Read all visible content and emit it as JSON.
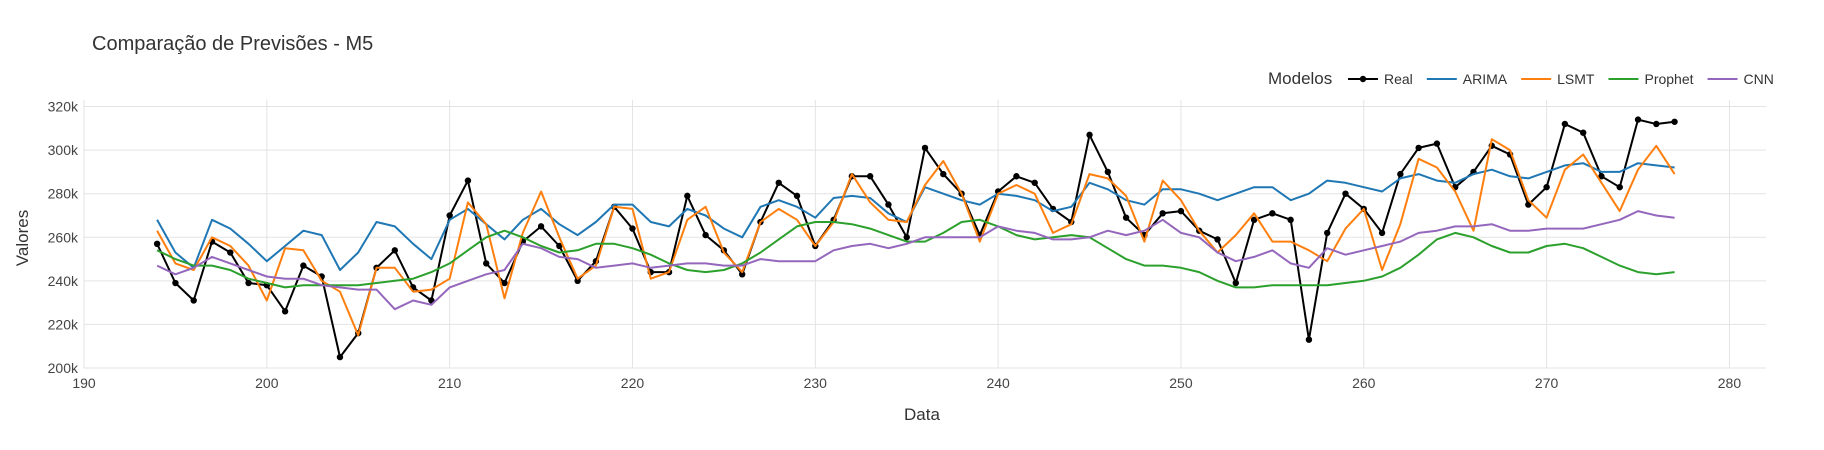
{
  "chart_data": {
    "type": "line",
    "title": "Comparação de Previsões - M5",
    "xlabel": "Data",
    "ylabel": "Valores",
    "xlim": [
      190,
      282
    ],
    "ylim": [
      200000,
      323000
    ],
    "xticks": [
      190,
      200,
      210,
      220,
      230,
      240,
      250,
      260,
      270,
      280
    ],
    "xtick_labels": [
      "190",
      "200",
      "210",
      "220",
      "230",
      "240",
      "250",
      "260",
      "270",
      "280"
    ],
    "yticks": [
      200000,
      220000,
      240000,
      260000,
      280000,
      300000,
      320000
    ],
    "ytick_labels": [
      "200k",
      "220k",
      "240k",
      "260k",
      "280k",
      "300k",
      "320k"
    ],
    "grid": true,
    "legend_title": "Modelos",
    "legend_position": "top-right",
    "x": [
      194,
      195,
      196,
      197,
      198,
      199,
      200,
      201,
      202,
      203,
      204,
      205,
      206,
      207,
      208,
      209,
      210,
      211,
      212,
      213,
      214,
      215,
      216,
      217,
      218,
      219,
      220,
      221,
      222,
      223,
      224,
      225,
      226,
      227,
      228,
      229,
      230,
      231,
      232,
      233,
      234,
      235,
      236,
      237,
      238,
      239,
      240,
      241,
      242,
      243,
      244,
      245,
      246,
      247,
      248,
      249,
      250,
      251,
      252,
      253,
      254,
      255,
      256,
      257,
      258,
      259,
      260,
      261,
      262,
      263,
      264,
      265,
      266,
      267,
      268,
      269,
      270,
      271,
      272,
      273,
      274,
      275,
      276,
      277
    ],
    "series": [
      {
        "name": "Real",
        "color": "#000000",
        "markers": true,
        "values": [
          257000,
          239000,
          231000,
          258000,
          253000,
          239000,
          238000,
          226000,
          247000,
          242000,
          205000,
          216000,
          246000,
          254000,
          237000,
          231000,
          270000,
          286000,
          248000,
          239000,
          258000,
          265000,
          256000,
          240000,
          249000,
          274000,
          264000,
          244000,
          244000,
          279000,
          261000,
          254000,
          243000,
          267000,
          285000,
          279000,
          256000,
          268000,
          288000,
          288000,
          275000,
          260000,
          301000,
          289000,
          280000,
          261000,
          281000,
          288000,
          285000,
          273000,
          267000,
          307000,
          290000,
          269000,
          261000,
          271000,
          272000,
          263000,
          259000,
          239000,
          268000,
          271000,
          268000,
          213000,
          262000,
          280000,
          273000,
          262000,
          289000,
          301000,
          303000,
          283000,
          290000,
          302000,
          298000,
          275000,
          283000,
          312000,
          308000,
          288000,
          283000,
          314000,
          312000,
          313000
        ]
      },
      {
        "name": "ARIMA",
        "color": "#1f77b4",
        "markers": false,
        "values": [
          268000,
          253000,
          246000,
          268000,
          264000,
          257000,
          249000,
          256000,
          263000,
          261000,
          245000,
          253000,
          267000,
          265000,
          257000,
          250000,
          268000,
          273000,
          266000,
          259000,
          268000,
          273000,
          266000,
          261000,
          267000,
          275000,
          275000,
          267000,
          265000,
          273000,
          270000,
          264000,
          260000,
          274000,
          277000,
          274000,
          269000,
          278000,
          279000,
          278000,
          271000,
          267000,
          283000,
          280000,
          277000,
          275000,
          280000,
          279000,
          277000,
          272000,
          274000,
          285000,
          282000,
          277000,
          275000,
          282000,
          282000,
          280000,
          277000,
          280000,
          283000,
          283000,
          277000,
          280000,
          286000,
          285000,
          283000,
          281000,
          287000,
          289000,
          286000,
          285000,
          289000,
          291000,
          288000,
          287000,
          290000,
          293000,
          294000,
          290000,
          290000,
          294000,
          293000,
          292000
        ]
      },
      {
        "name": "LSMT",
        "color": "#ff7f0e",
        "markers": false,
        "values": [
          263000,
          248000,
          245000,
          260000,
          256000,
          247000,
          231000,
          255000,
          254000,
          240000,
          235000,
          215000,
          246000,
          246000,
          235000,
          236000,
          241000,
          276000,
          266000,
          232000,
          262000,
          281000,
          260000,
          241000,
          247000,
          274000,
          273000,
          241000,
          244000,
          268000,
          274000,
          253000,
          244000,
          267000,
          273000,
          268000,
          256000,
          267000,
          289000,
          276000,
          268000,
          267000,
          284000,
          295000,
          280000,
          258000,
          280000,
          284000,
          280000,
          262000,
          266000,
          289000,
          287000,
          279000,
          258000,
          286000,
          277000,
          263000,
          253000,
          261000,
          271000,
          258000,
          258000,
          254000,
          249000,
          264000,
          273000,
          245000,
          266000,
          296000,
          292000,
          281000,
          263000,
          305000,
          300000,
          277000,
          269000,
          291000,
          298000,
          285000,
          272000,
          291000,
          302000,
          289000
        ]
      },
      {
        "name": "Prophet",
        "color": "#2ca02c",
        "markers": false,
        "values": [
          254000,
          250000,
          247000,
          247000,
          245000,
          241000,
          239000,
          237000,
          238000,
          238000,
          238000,
          238000,
          239000,
          240000,
          241000,
          244000,
          248000,
          254000,
          260000,
          263000,
          260000,
          256000,
          253000,
          254000,
          257000,
          257000,
          255000,
          252000,
          248000,
          245000,
          244000,
          245000,
          248000,
          253000,
          259000,
          265000,
          267000,
          267000,
          266000,
          264000,
          261000,
          258000,
          258000,
          262000,
          267000,
          268000,
          265000,
          261000,
          259000,
          260000,
          261000,
          260000,
          255000,
          250000,
          247000,
          247000,
          246000,
          244000,
          240000,
          237000,
          237000,
          238000,
          238000,
          238000,
          238000,
          239000,
          240000,
          242000,
          246000,
          252000,
          259000,
          262000,
          260000,
          256000,
          253000,
          253000,
          256000,
          257000,
          255000,
          251000,
          247000,
          244000,
          243000,
          244000
        ]
      },
      {
        "name": "CNN",
        "color": "#9467bd",
        "markers": false,
        "values": [
          247000,
          243000,
          246000,
          251000,
          248000,
          245000,
          242000,
          241000,
          241000,
          238000,
          237000,
          236000,
          236000,
          227000,
          231000,
          229000,
          237000,
          240000,
          243000,
          245000,
          257000,
          255000,
          251000,
          250000,
          246000,
          247000,
          248000,
          246000,
          247000,
          248000,
          248000,
          247000,
          247000,
          250000,
          249000,
          249000,
          249000,
          254000,
          256000,
          257000,
          255000,
          257000,
          260000,
          260000,
          260000,
          260000,
          265000,
          263000,
          262000,
          259000,
          259000,
          260000,
          263000,
          261000,
          263000,
          268000,
          262000,
          260000,
          253000,
          249000,
          251000,
          254000,
          248000,
          246000,
          255000,
          252000,
          254000,
          256000,
          258000,
          262000,
          263000,
          265000,
          265000,
          266000,
          263000,
          263000,
          264000,
          264000,
          264000,
          266000,
          268000,
          272000,
          270000,
          269000
        ]
      }
    ]
  }
}
